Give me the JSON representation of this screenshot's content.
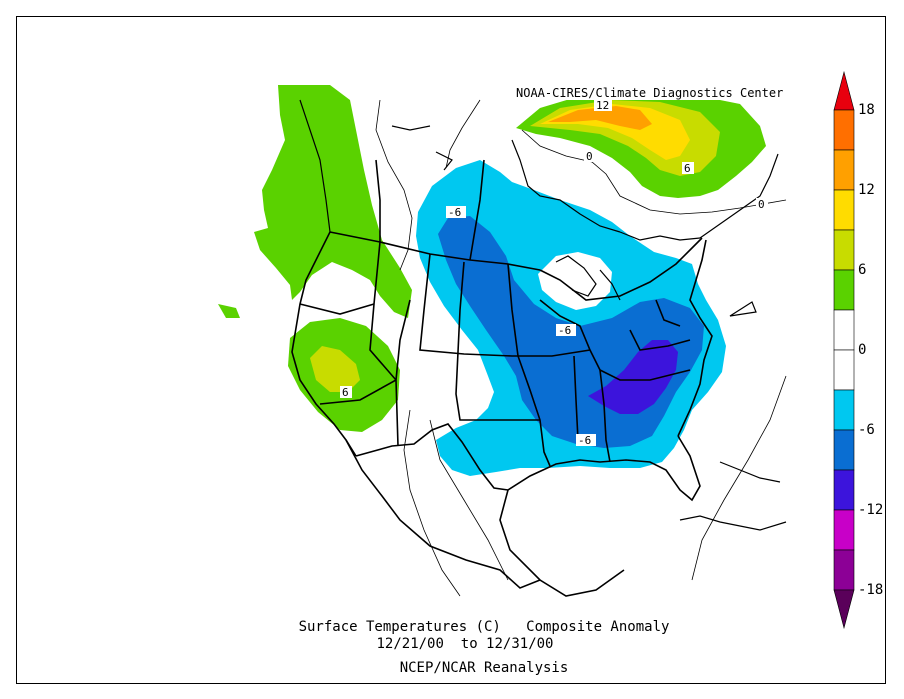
{
  "credit": "NOAA-CIRES/Climate Diagnostics Center",
  "caption": {
    "line1": "Surface Temperatures (C)   Composite Anomaly",
    "line2": "12/21/00  to 12/31/00",
    "line3": "NCEP/NCAR Reanalysis"
  },
  "colorbar": {
    "labels": [
      "18",
      "12",
      "6",
      "0",
      "-6",
      "-12",
      "-18"
    ],
    "colors": [
      "#e8000e",
      "#ff6f00",
      "#ffa000",
      "#ffdc00",
      "#c8dc00",
      "#5ad200",
      "#ffffff",
      "#ffffff",
      "#00c8f0",
      "#0a6ed2",
      "#3c14dc",
      "#c800c8",
      "#8c0096",
      "#5a005a"
    ]
  },
  "contour_labels": [
    {
      "text": "12"
    },
    {
      "text": "0"
    },
    {
      "text": "6"
    },
    {
      "text": "0"
    },
    {
      "text": "-6"
    },
    {
      "text": "-6"
    },
    {
      "text": "6"
    },
    {
      "text": "-6"
    }
  ]
}
